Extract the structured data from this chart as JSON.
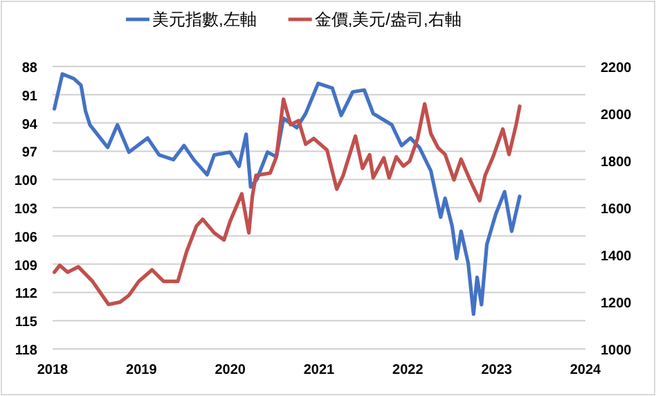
{
  "chart_data": {
    "type": "line",
    "legend": "top",
    "grid": "y",
    "line_style": "solid",
    "marker": "none",
    "xlim": [
      2018,
      2024
    ],
    "xticks": [
      2018,
      2019,
      2020,
      2021,
      2022,
      2023,
      2024
    ],
    "ylim": [
      118,
      88
    ],
    "yticks": [
      88,
      91,
      94,
      97,
      100,
      103,
      106,
      109,
      112,
      115,
      118
    ],
    "y2lim": [
      1000,
      2200
    ],
    "y2ticks": [
      1000,
      1200,
      1400,
      1600,
      1800,
      2000,
      2200
    ],
    "series": [
      {
        "name": "美元指數,左軸",
        "color": "#4472c4",
        "x": [
          2018.02,
          2018.11,
          2018.24,
          2018.32,
          2018.37,
          2018.42,
          2018.62,
          2018.73,
          2018.86,
          2019.07,
          2019.2,
          2019.36,
          2019.48,
          2019.59,
          2019.74,
          2019.82,
          2020.0,
          2020.1,
          2020.18,
          2020.23,
          2020.3,
          2020.42,
          2020.52,
          2020.6,
          2020.75,
          2020.85,
          2020.99,
          2021.15,
          2021.25,
          2021.38,
          2021.51,
          2021.61,
          2021.82,
          2021.93,
          2022.03,
          2022.13,
          2022.26,
          2022.37,
          2022.42,
          2022.5,
          2022.55,
          2022.6,
          2022.68,
          2022.74,
          2022.78,
          2022.83,
          2022.89,
          2022.99,
          2023.09,
          2023.17,
          2023.26
        ],
        "values": [
          92.5,
          88.8,
          89.3,
          90.0,
          92.7,
          94.2,
          96.6,
          94.2,
          97.1,
          95.6,
          97.4,
          97.9,
          96.4,
          97.9,
          99.5,
          97.4,
          97.1,
          98.6,
          95.2,
          100.8,
          100.0,
          97.1,
          97.6,
          93.5,
          94.5,
          93.0,
          89.8,
          90.3,
          93.2,
          90.7,
          90.5,
          93.0,
          94.2,
          96.4,
          95.6,
          96.6,
          99.1,
          104.0,
          102.0,
          105.0,
          108.4,
          105.5,
          108.9,
          114.3,
          110.4,
          113.3,
          106.9,
          103.7,
          101.3,
          105.5,
          101.8
        ]
      },
      {
        "name": "金價,美元/盎司,右軸",
        "color": "#c0504d",
        "axis": "y2",
        "x": [
          2018.02,
          2018.08,
          2018.17,
          2018.29,
          2018.45,
          2018.63,
          2018.76,
          2018.86,
          2018.97,
          2019.12,
          2019.25,
          2019.41,
          2019.51,
          2019.62,
          2019.69,
          2019.82,
          2019.93,
          2020.0,
          2020.13,
          2020.21,
          2020.25,
          2020.29,
          2020.45,
          2020.52,
          2020.6,
          2020.68,
          2020.77,
          2020.85,
          2020.94,
          2021.09,
          2021.2,
          2021.27,
          2021.41,
          2021.49,
          2021.57,
          2021.61,
          2021.73,
          2021.79,
          2021.87,
          2021.95,
          2022.02,
          2022.11,
          2022.19,
          2022.26,
          2022.34,
          2022.42,
          2022.52,
          2022.6,
          2022.7,
          2022.81,
          2022.87,
          2022.96,
          2023.07,
          2023.14,
          2023.22,
          2023.26
        ],
        "values": [
          1326,
          1355,
          1326,
          1349,
          1287,
          1189,
          1199,
          1228,
          1287,
          1336,
          1287,
          1287,
          1414,
          1522,
          1551,
          1493,
          1463,
          1543,
          1659,
          1493,
          1650,
          1737,
          1747,
          1816,
          2061,
          1953,
          1970,
          1870,
          1894,
          1845,
          1679,
          1735,
          1904,
          1767,
          1825,
          1727,
          1812,
          1727,
          1816,
          1777,
          1797,
          1894,
          2041,
          1914,
          1855,
          1826,
          1718,
          1806,
          1718,
          1630,
          1737,
          1816,
          1934,
          1826,
          1953,
          2031
        ]
      }
    ]
  }
}
